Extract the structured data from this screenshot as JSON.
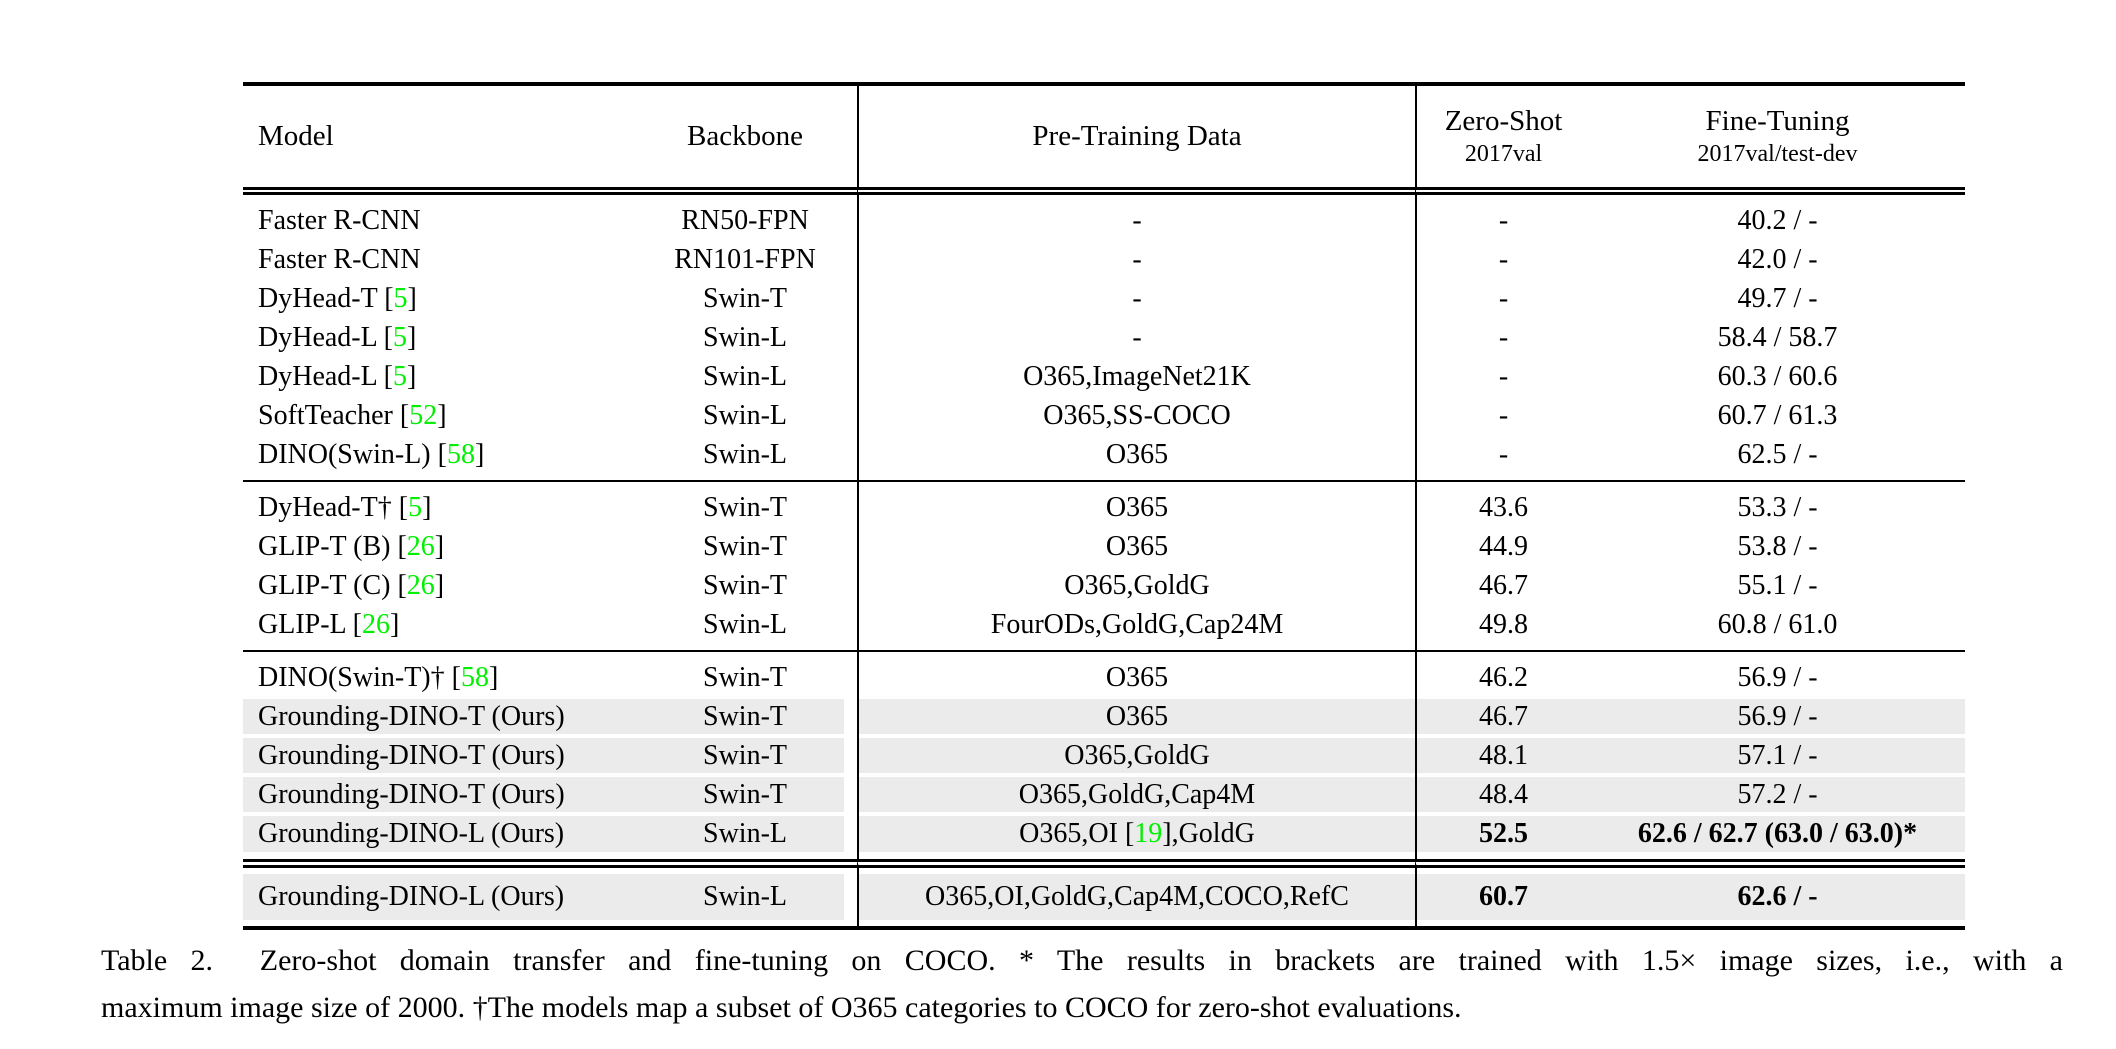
{
  "colors": {
    "citation_green": "#00f000",
    "row_highlight": "#ebebeb"
  },
  "header": {
    "model": "Model",
    "backbone": "Backbone",
    "pretrain": "Pre-Training Data",
    "zeroshot": {
      "label": "Zero-Shot",
      "sublabel": "2017val"
    },
    "finetune": {
      "label": "Fine-Tuning",
      "sublabel": "2017val/test-dev"
    }
  },
  "sections": [
    {
      "rows": [
        {
          "model": [
            {
              "t": "Faster R-CNN"
            }
          ],
          "backbone": "RN50-FPN",
          "pretrain": [
            {
              "t": "-"
            }
          ],
          "zeroshot": "-",
          "finetune": "40.2 / -"
        },
        {
          "model": [
            {
              "t": "Faster R-CNN"
            }
          ],
          "backbone": "RN101-FPN",
          "pretrain": [
            {
              "t": "-"
            }
          ],
          "zeroshot": "-",
          "finetune": "42.0 / -"
        },
        {
          "model": [
            {
              "t": "DyHead-T ["
            },
            {
              "t": "5",
              "green": true
            },
            {
              "t": "]"
            }
          ],
          "backbone": "Swin-T",
          "pretrain": [
            {
              "t": "-"
            }
          ],
          "zeroshot": "-",
          "finetune": "49.7 / -"
        },
        {
          "model": [
            {
              "t": "DyHead-L ["
            },
            {
              "t": "5",
              "green": true
            },
            {
              "t": "]"
            }
          ],
          "backbone": "Swin-L",
          "pretrain": [
            {
              "t": "-"
            }
          ],
          "zeroshot": "-",
          "finetune": "58.4 / 58.7"
        },
        {
          "model": [
            {
              "t": "DyHead-L ["
            },
            {
              "t": "5",
              "green": true
            },
            {
              "t": "]"
            }
          ],
          "backbone": "Swin-L",
          "pretrain": [
            {
              "t": "O365,ImageNet21K"
            }
          ],
          "zeroshot": "-",
          "finetune": "60.3 / 60.6"
        },
        {
          "model": [
            {
              "t": "SoftTeacher ["
            },
            {
              "t": "52",
              "green": true
            },
            {
              "t": "]"
            }
          ],
          "backbone": "Swin-L",
          "pretrain": [
            {
              "t": "O365,SS-COCO"
            }
          ],
          "zeroshot": "-",
          "finetune": "60.7 / 61.3"
        },
        {
          "model": [
            {
              "t": "DINO(Swin-L) ["
            },
            {
              "t": "58",
              "green": true
            },
            {
              "t": "]"
            }
          ],
          "backbone": "Swin-L",
          "pretrain": [
            {
              "t": "O365"
            }
          ],
          "zeroshot": "-",
          "finetune": "62.5 / -"
        }
      ]
    },
    {
      "rows": [
        {
          "model": [
            {
              "t": "DyHead-T† ["
            },
            {
              "t": "5",
              "green": true
            },
            {
              "t": "]"
            }
          ],
          "backbone": "Swin-T",
          "pretrain": [
            {
              "t": "O365"
            }
          ],
          "zeroshot": "43.6",
          "finetune": "53.3 / -"
        },
        {
          "model": [
            {
              "t": "GLIP-T (B) ["
            },
            {
              "t": "26",
              "green": true
            },
            {
              "t": "]"
            }
          ],
          "backbone": "Swin-T",
          "pretrain": [
            {
              "t": "O365"
            }
          ],
          "zeroshot": "44.9",
          "finetune": "53.8 / -"
        },
        {
          "model": [
            {
              "t": "GLIP-T (C) ["
            },
            {
              "t": "26",
              "green": true
            },
            {
              "t": "]"
            }
          ],
          "backbone": "Swin-T",
          "pretrain": [
            {
              "t": "O365,GoldG"
            }
          ],
          "zeroshot": "46.7",
          "finetune": "55.1 / -"
        },
        {
          "model": [
            {
              "t": "GLIP-L ["
            },
            {
              "t": "26",
              "green": true
            },
            {
              "t": "]"
            }
          ],
          "backbone": "Swin-L",
          "pretrain": [
            {
              "t": "FourODs,GoldG,Cap24M"
            }
          ],
          "zeroshot": "49.8",
          "finetune": "60.8 / 61.0"
        }
      ]
    },
    {
      "rows": [
        {
          "model": [
            {
              "t": "DINO(Swin-T)† ["
            },
            {
              "t": "58",
              "green": true
            },
            {
              "t": "]"
            }
          ],
          "backbone": "Swin-T",
          "pretrain": [
            {
              "t": "O365"
            }
          ],
          "zeroshot": "46.2",
          "finetune": "56.9 / -"
        },
        {
          "model": [
            {
              "t": "Grounding-DINO-T (Ours)"
            }
          ],
          "backbone": "Swin-T",
          "pretrain": [
            {
              "t": "O365"
            }
          ],
          "zeroshot": "46.7",
          "finetune": "56.9 / -",
          "highlight": true
        },
        {
          "model": [
            {
              "t": "Grounding-DINO-T (Ours)"
            }
          ],
          "backbone": "Swin-T",
          "pretrain": [
            {
              "t": "O365,GoldG"
            }
          ],
          "zeroshot": "48.1",
          "finetune": "57.1 / -",
          "highlight": true
        },
        {
          "model": [
            {
              "t": "Grounding-DINO-T (Ours)"
            }
          ],
          "backbone": "Swin-T",
          "pretrain": [
            {
              "t": "O365,GoldG,Cap4M"
            }
          ],
          "zeroshot": "48.4",
          "finetune": "57.2 / -",
          "highlight": true
        },
        {
          "model": [
            {
              "t": "Grounding-DINO-L (Ours)"
            }
          ],
          "backbone": "Swin-L",
          "pretrain": [
            {
              "t": "O365,OI ["
            },
            {
              "t": "19",
              "green": true
            },
            {
              "t": "],GoldG"
            }
          ],
          "zeroshot": "52.5",
          "finetune": "62.6 / 62.7 (63.0 / 63.0)*",
          "highlight": true,
          "bold": true
        }
      ]
    },
    {
      "rows": [
        {
          "model": [
            {
              "t": "Grounding-DINO-L (Ours)"
            }
          ],
          "backbone": "Swin-L",
          "pretrain": [
            {
              "t": "O365,OI,GoldG,Cap4M,COCO,RefC"
            }
          ],
          "zeroshot": "60.7",
          "finetune": "62.6 / -",
          "highlight": true,
          "bold": true
        }
      ]
    }
  ],
  "caption": {
    "line1": "Table 2.  Zero-shot domain transfer and fine-tuning on COCO. * The results in brackets are trained with 1.5× image sizes, i.e., with a",
    "line2": "maximum image size of 2000. †The models map a subset of O365 categories to COCO for zero-shot evaluations."
  }
}
